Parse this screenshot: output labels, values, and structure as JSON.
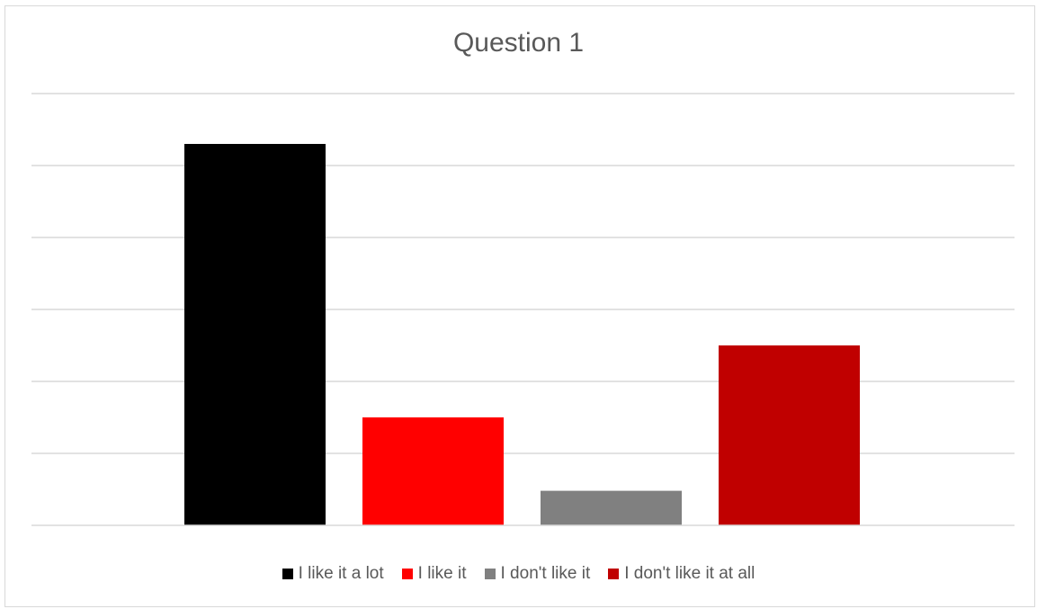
{
  "chart_data": {
    "type": "bar",
    "title": "Question 1",
    "categories": [
      "I like it a lot",
      "I like it",
      "I don't like it",
      "I don't like it at all"
    ],
    "values": [
      5.3,
      1.5,
      0.48,
      2.5
    ],
    "colors": [
      "#000000",
      "#ff0000",
      "#808080",
      "#c00000"
    ],
    "ylim": [
      0,
      6
    ],
    "grid": true,
    "legend": "bottom",
    "xlabel": "",
    "ylabel": ""
  }
}
